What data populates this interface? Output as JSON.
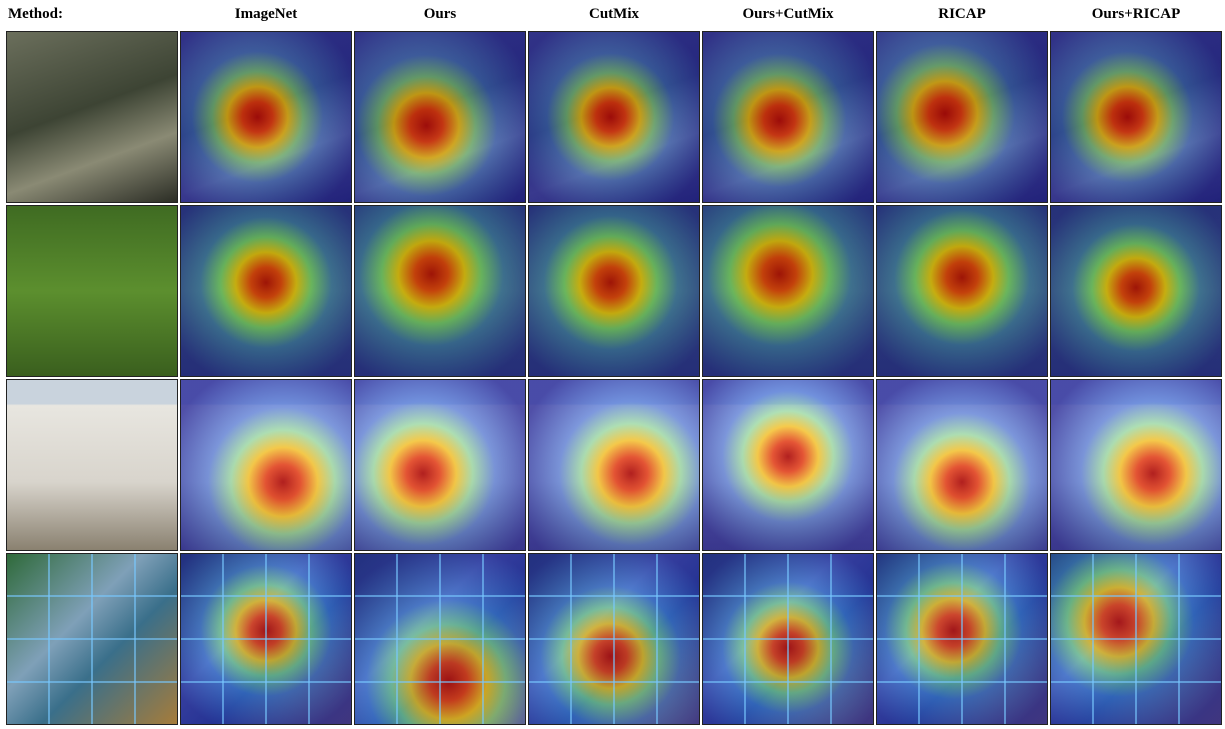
{
  "header": {
    "label": "Method:",
    "columns": [
      "ImageNet",
      "Ours",
      "CutMix",
      "Ours+CutMix",
      "RICAP",
      "Ours+RICAP"
    ]
  }
}
